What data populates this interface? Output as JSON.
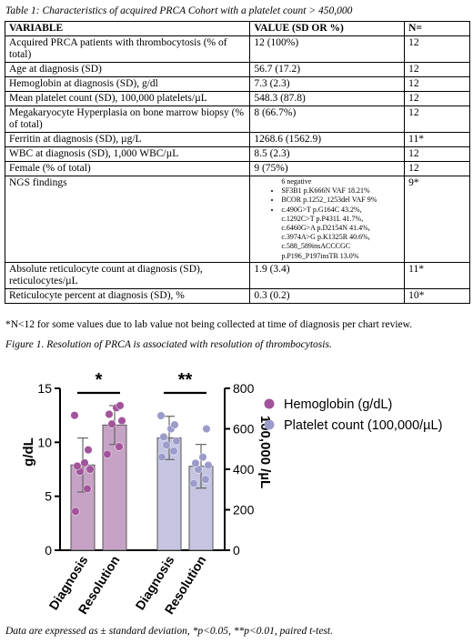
{
  "table_caption": "Table 1: Characteristics of acquired PRCA Cohort with a platelet count > 450,000",
  "table": {
    "headers": [
      "VARIABLE",
      "VALUE (SD OR %)",
      "N="
    ],
    "rows": [
      {
        "variable": "Acquired PRCA patients with thrombocytosis (% of total)",
        "value": "12 (100%)",
        "n": "12"
      },
      {
        "variable": "Age at diagnosis (SD)",
        "value": "56.7 (17.2)",
        "n": "12"
      },
      {
        "variable": "Hemoglobin at diagnosis (SD), g/dl",
        "value": "7.3 (2.3)",
        "n": "12"
      },
      {
        "variable": "Mean platelet count (SD), 100,000 platelets/µL",
        "value": "548.3 (87.8)",
        "n": "12"
      },
      {
        "variable": "Megakaryocyte Hyperplasia on bone marrow biopsy (% of total)",
        "value": "8 (66.7%)",
        "n": "12"
      },
      {
        "variable": "Ferritin at diagnosis (SD), µg/L",
        "value": "1268.6 (1562.9)",
        "n": "11*"
      },
      {
        "variable": "WBC at diagnosis (SD), 1,000 WBC/µL",
        "value": "8.5 (2.3)",
        "n": "12"
      },
      {
        "variable": "Female (% of total)",
        "value": "9 (75%)",
        "n": "12"
      }
    ],
    "ngs": {
      "variable": "NGS findings",
      "items": [
        "6 negative",
        "SF3B1 p.K666N VAF 18.21%",
        "BCOR p.1252_1253del VAF 9%",
        "c.490G>T p.G164C 43.2%,"
      ],
      "continuation": [
        "c.1292C>T p.P431L 41.7%,",
        "c.6460G>A p.D2154N 41.4%,",
        "c.3974A>G p.K1325R 40.6%,",
        "c.588_589insACCCGC",
        "p.P196_P197insTR 13.0%"
      ],
      "n": "9*"
    },
    "rows_after": [
      {
        "variable": "Absolute reticulocyte count at diagnosis (SD), reticulocytes/µL",
        "value": "1.9 (3.4)",
        "n": "11*"
      },
      {
        "variable": "Reticulocyte percent at diagnosis (SD), %",
        "value": "0.3 (0.2)",
        "n": "10*"
      }
    ]
  },
  "footnote": "*N<12 for some values due to lab value not being collected at time of diagnosis per chart review.",
  "figure_caption": "Figure 1. Resolution of PRCA is associated with resolution of thrombocytosis.",
  "footer_caption": "Data are expressed as ± standard deviation, *p<0.05, **p<0.01, paired t-test.",
  "chart_data": {
    "type": "bar",
    "categories": [
      "Diagnosis",
      "Resolution",
      "Diagnosis",
      "Resolution"
    ],
    "ylabel_left": "g/dL",
    "ylabel_right": "100,000 /µL",
    "ylim_left": [
      0,
      15
    ],
    "ylim_right": [
      0,
      800
    ],
    "yticks_left": [
      0,
      5,
      10,
      15
    ],
    "yticks_right": [
      0,
      200,
      400,
      600,
      800
    ],
    "legend_position": "top-right",
    "colors": {
      "hemoglobin": "#a3539b",
      "platelet": "#9c9ccb",
      "hemoglobin_bar": "#c6a3c4",
      "platelet_bar": "#c5c5e2"
    },
    "series": [
      {
        "name": "Hemoglobin (g/dL)",
        "axis": "left",
        "means": [
          7.9,
          11.6
        ],
        "sd": [
          2.5,
          1.8
        ],
        "points": [
          [
            3.6,
            5.7,
            7.3,
            7.5,
            7.8,
            8.1,
            9.3,
            12.5
          ],
          [
            8.9,
            9.6,
            11.7,
            12.0,
            12.6,
            13.2,
            13.4
          ]
        ]
      },
      {
        "name": "Platelet count (100,000/µL)",
        "axis": "right",
        "means": [
          555,
          415
        ],
        "sd": [
          107,
          108
        ],
        "points": [
          [
            460,
            490,
            520,
            540,
            560,
            600,
            620,
            665
          ],
          [
            330,
            350,
            400,
            420,
            430,
            460,
            600
          ]
        ]
      }
    ],
    "significance": [
      "*",
      "**"
    ]
  }
}
